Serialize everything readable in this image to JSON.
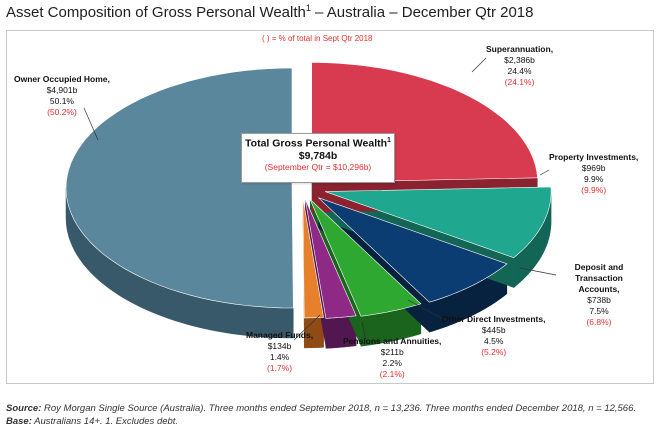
{
  "title": {
    "main": "Asset Composition of Gross Personal Wealth",
    "sup": "1",
    "rest": " – Australia – December Qtr 2018"
  },
  "note": "( ) = % of total in Sept Qtr 2018",
  "center": {
    "title": "Total Gross Personal Wealth",
    "sup": "1",
    "value": "$9,784b",
    "prev": "(September Qtr = $10,296b)"
  },
  "source": {
    "label": "Source:",
    "text": " Roy Morgan Single Source (Australia). Three months ended September 2018, n = 13,236. Three months ended December 2018, n = 12,566. ",
    "base_label": "Base:",
    "base_text": " Australians 14+. 1. Excludes debt."
  },
  "chart_data": {
    "type": "pie",
    "title": "Asset Composition of Gross Personal Wealth1 – Australia – December Qtr 2018",
    "total": "$9,784b",
    "slices": [
      {
        "name": "Superannuation,",
        "value_label": "$2,386b",
        "value": 2386,
        "pct": "24.4%",
        "prev": "(24.1%)",
        "color": "#d83b4f",
        "side": "#8a2230"
      },
      {
        "name": "Property Investments,",
        "value_label": "$969b",
        "value": 969,
        "pct": "9.9%",
        "prev": "(9.9%)",
        "color": "#1fa88f",
        "side": "#136655"
      },
      {
        "name": "Deposit and Transaction Accounts,",
        "value_label": "$738b",
        "value": 738,
        "pct": "7.5%",
        "prev": "(6.8%)",
        "color": "#0b3d73",
        "side": "#06223f"
      },
      {
        "name": "Other Direct Investments,",
        "value_label": "$445b",
        "value": 445,
        "pct": "4.5%",
        "prev": "(5.2%)",
        "color": "#2fa832",
        "side": "#1a641d"
      },
      {
        "name": "Pensions and Annuities,",
        "value_label": "$211b",
        "value": 211,
        "pct": "2.2%",
        "prev": "(2.1%)",
        "color": "#8e2a86",
        "side": "#521650"
      },
      {
        "name": "Managed Funds,",
        "value_label": "$134b",
        "value": 134,
        "pct": "1.4%",
        "prev": "(1.7%)",
        "color": "#e6802b",
        "side": "#8f4b14"
      },
      {
        "name": "Owner Occupied Home,",
        "value_label": "$4,901b",
        "value": 4901,
        "pct": "50.1%",
        "prev": "(50.2%)",
        "color": "#5b879c",
        "side": "#37596a"
      }
    ]
  }
}
